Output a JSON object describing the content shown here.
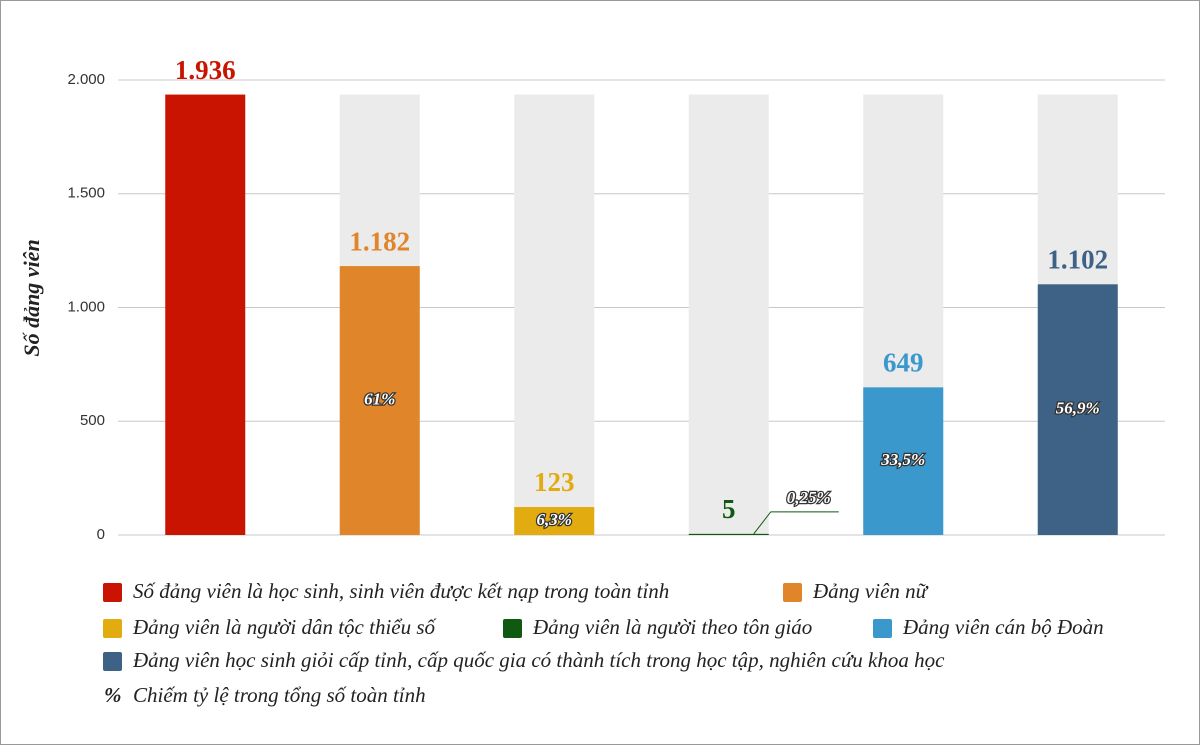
{
  "chart_data": {
    "type": "bar",
    "y_label": "Số đảng viên",
    "ylim": [
      0,
      2000
    ],
    "yticks": [
      0,
      500,
      {
        "value": 1000,
        "label": "1.000"
      },
      {
        "value": 1500,
        "label": "1.500"
      },
      {
        "value": 2000,
        "label": "2.000"
      }
    ],
    "grid": true,
    "backdrop_color": "#ebebeb",
    "series": [
      {
        "name": "Số đảng viên là học sinh, sinh viên được kết nạp trong toàn tỉnh",
        "color": "#c81400",
        "values": [
          1936
        ],
        "value_labels": [
          "1.936"
        ]
      },
      {
        "name": "Đảng viên nữ",
        "color": "#e0852a",
        "values": [
          1182
        ],
        "value_labels": [
          "1.182"
        ],
        "share_labels": [
          "61%"
        ]
      },
      {
        "name": "Đảng viên là người dân tộc thiểu số",
        "color": "#e2ab10",
        "values": [
          123
        ],
        "share_labels": [
          "6,3%"
        ]
      },
      {
        "name": "Đảng viên là người theo tôn giáo",
        "color": "#0f5a10",
        "values": [
          5
        ],
        "share_labels": [
          "0,25%"
        ]
      },
      {
        "name": "Đảng viên cán bộ Đoàn",
        "color": "#3a98cc",
        "values": [
          649
        ],
        "share_labels": [
          "33,5%"
        ]
      },
      {
        "name": "Đảng viên học sinh giỏi cấp tỉnh, cấp quốc gia có thành tích trong học tập, nghiên cứu khoa học",
        "color": "#3d6285",
        "values": [
          1102
        ],
        "value_labels": [
          "1.102"
        ],
        "share_labels": [
          "56,9%"
        ]
      }
    ],
    "note_symbol": "%",
    "note": "Chiếm tỷ lệ trong tổng số toàn tỉnh"
  }
}
